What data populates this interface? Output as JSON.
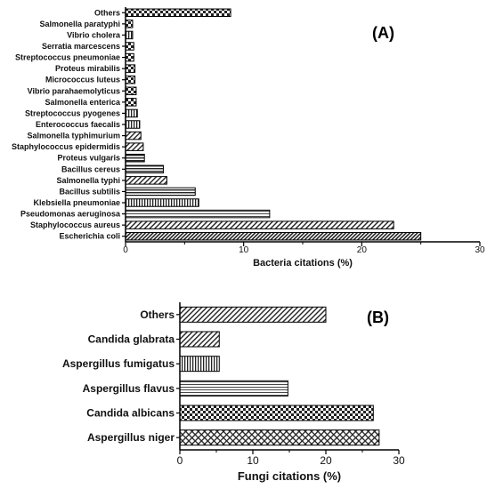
{
  "chart_data": [
    {
      "type": "bar",
      "orientation": "horizontal",
      "panel_label": "(A)",
      "xlabel": "Bacteria citations (%)",
      "ylabel": "",
      "xlim": [
        0,
        30
      ],
      "xticks": [
        "0",
        "10",
        "20",
        "30"
      ],
      "grid": false,
      "categories": [
        "Others",
        "Salmonella paratyphi",
        "Vibrio cholera",
        "Serratia marcescens",
        "Streptococcus pneumoniae",
        "Proteus mirabilis",
        "Micrococcus luteus",
        "Vibrio parahaemolyticus",
        "Salmonella enterica",
        "Streptococcus pyogenes",
        "Enterococcus faecalis",
        "Salmonella typhimurium",
        "Staphylococcus epidermidis",
        "Proteus vulgaris",
        "Bacillus cereus",
        "Salmonella typhi",
        "Bacillus subtilis",
        "Klebsiella pneumoniae",
        "Pseudomonas aeruginosa",
        "Staphylococcus aureus",
        "Escherichia coli"
      ],
      "values": [
        8.9,
        0.6,
        0.6,
        0.7,
        0.7,
        0.8,
        0.8,
        0.9,
        0.9,
        1.0,
        1.2,
        1.3,
        1.5,
        1.6,
        3.2,
        3.5,
        5.9,
        6.2,
        12.2,
        22.7,
        25.0
      ],
      "patterns": [
        "checker",
        "checker",
        "vert",
        "checker",
        "checker",
        "checker",
        "checker",
        "checker",
        "checker",
        "vert",
        "vert",
        "diag",
        "diag",
        "hstripe",
        "hstripe",
        "diag",
        "hstripe",
        "vert",
        "hline",
        "diag",
        "diag-dense"
      ]
    },
    {
      "type": "bar",
      "orientation": "horizontal",
      "panel_label": "(B)",
      "xlabel": "Fungi citations (%)",
      "ylabel": "",
      "xlim": [
        0,
        30
      ],
      "xticks": [
        "0",
        "10",
        "20",
        "30"
      ],
      "grid": false,
      "categories": [
        "Others",
        "Candida glabrata",
        "Aspergillus fumigatus",
        "Aspergillus flavus",
        "Candida albicans",
        "Aspergillus niger"
      ],
      "values": [
        20.0,
        5.4,
        5.4,
        14.8,
        26.5,
        27.3
      ],
      "patterns": [
        "diag",
        "diag",
        "vert",
        "hline",
        "checker",
        "cross"
      ]
    }
  ]
}
